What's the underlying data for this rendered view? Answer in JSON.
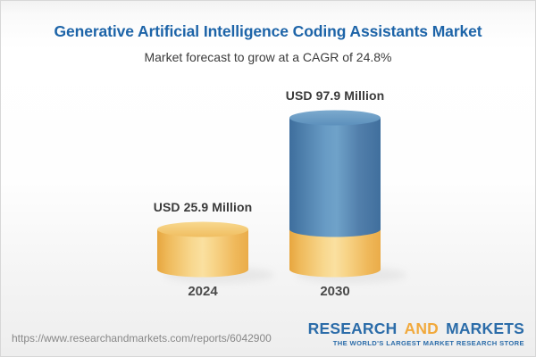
{
  "chart_data": {
    "type": "bar",
    "bar_style": "3d-cylinder",
    "title": "Generative Artificial Intelligence Coding Assistants Market",
    "subtitle": "Market forecast to grow at a CAGR of 24.8%",
    "cagr_percent": 24.8,
    "categories": [
      "2024",
      "2030"
    ],
    "values": [
      25.9,
      97.9
    ],
    "unit": "USD Million",
    "data_labels": [
      "USD 25.9 Million",
      "USD 97.9 Million"
    ],
    "ylim": [
      0,
      110
    ],
    "grid": false,
    "legend": false,
    "colors": {
      "bar_2024_yellow": "#F2C368",
      "bar_2030_blue": "#5B90BC",
      "bar_2030_base_segment_yellow": "#F2C368",
      "title_blue": "#1D64A8",
      "subtitle_gray": "#3C3C3C",
      "label_dark_gray": "#3A3A3A"
    },
    "notes": "2030 cylinder is blue with a yellow base segment equal in height to the 2024 value"
  },
  "footer": {
    "url": "https://www.researchandmarkets.com/reports/6042900",
    "logo": {
      "word1": "RESEARCH",
      "word2": "AND",
      "word3": "MARKETS",
      "tagline": "THE WORLD'S LARGEST MARKET RESEARCH STORE",
      "blue": "#2B6CA9",
      "orange": "#F1A93C"
    }
  }
}
